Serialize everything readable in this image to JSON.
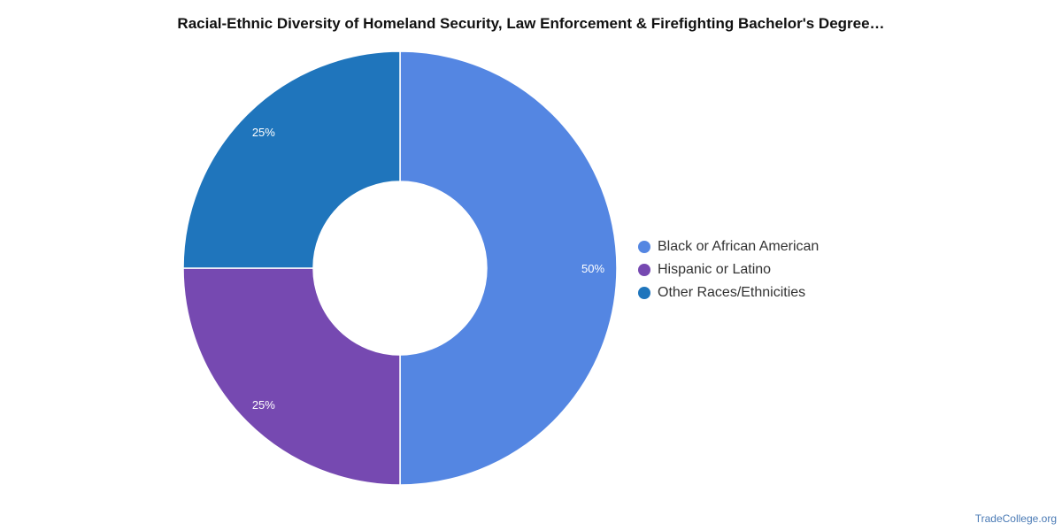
{
  "chart_data": {
    "type": "pie",
    "style": "donut",
    "title": "Racial-Ethnic Diversity of Homeland Security, Law Enforcement & Firefighting Bachelor's Degree…",
    "slices": [
      {
        "label": "Black or African American",
        "value": 50,
        "display": "50%",
        "color": "#5486e2"
      },
      {
        "label": "Hispanic or Latino",
        "value": 25,
        "display": "25%",
        "color": "#7649b1"
      },
      {
        "label": "Other Races/Ethnicities",
        "value": 25,
        "display": "25%",
        "color": "#1f75bc"
      }
    ],
    "legend": "right"
  },
  "source_label": "TradeCollege.org"
}
